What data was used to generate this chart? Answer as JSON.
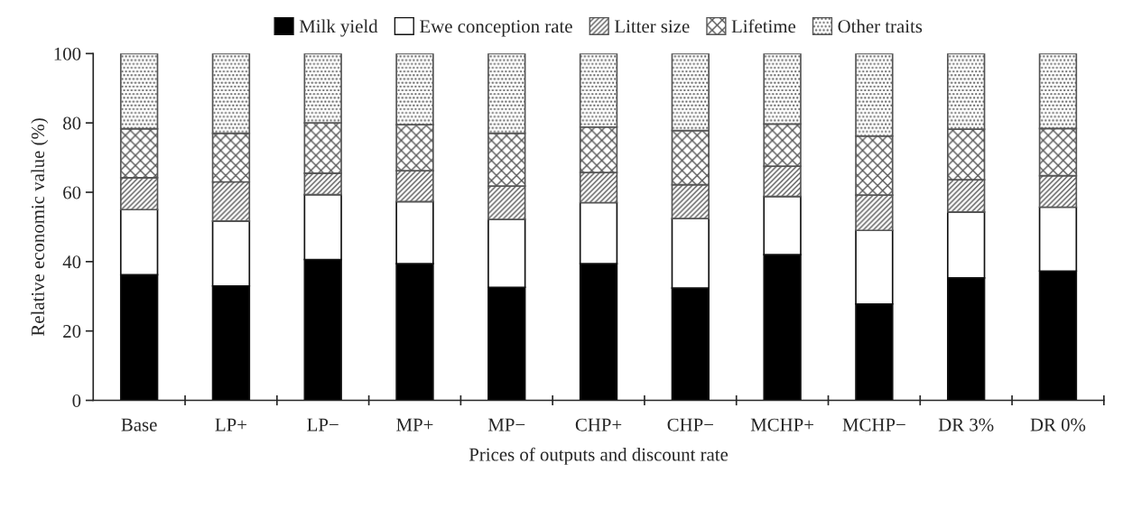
{
  "chart_data": {
    "type": "bar",
    "stacked": true,
    "xlabel": "Prices of outputs and discount rate",
    "ylabel": "Relative economic value (%)",
    "categories": [
      "Base",
      "LP+",
      "LP−",
      "MP+",
      "MP−",
      "CHP+",
      "CHP−",
      "MCHP+",
      "MCHP−",
      "DR 3%",
      "DR 0%"
    ],
    "series": [
      {
        "name": "Milk yield",
        "color": "#000000",
        "values": [
          36.2,
          33,
          40.6,
          39.4,
          32.6,
          39.4,
          32.4,
          42,
          27.8,
          35.3,
          37.3
        ]
      },
      {
        "name": "Ewe conception rate",
        "color": "#ffffff",
        "values": [
          18.8,
          18.7,
          18.7,
          17.9,
          19.6,
          17.6,
          20,
          16.8,
          21.2,
          19,
          18.4
        ]
      },
      {
        "name": "Litter size",
        "color": "#555555",
        "values": [
          9.2,
          11.3,
          6.2,
          8.9,
          9.6,
          8.7,
          9.8,
          8.7,
          10.2,
          9.3,
          9.1
        ]
      },
      {
        "name": "Lifetime",
        "color": "#555555",
        "values": [
          14.1,
          14,
          14.5,
          13.3,
          15.2,
          13.1,
          15.6,
          12.2,
          17,
          14.6,
          13.6
        ]
      },
      {
        "name": "Other traits",
        "color": "#555555",
        "values": [
          21.7,
          23,
          20,
          20.5,
          23,
          21.2,
          22.2,
          20.3,
          23.8,
          21.8,
          21.6
        ]
      }
    ],
    "ylim": [
      0,
      100
    ],
    "yticks": [
      0,
      20,
      40,
      60,
      80,
      100
    ],
    "grid": false,
    "legend": "top"
  }
}
